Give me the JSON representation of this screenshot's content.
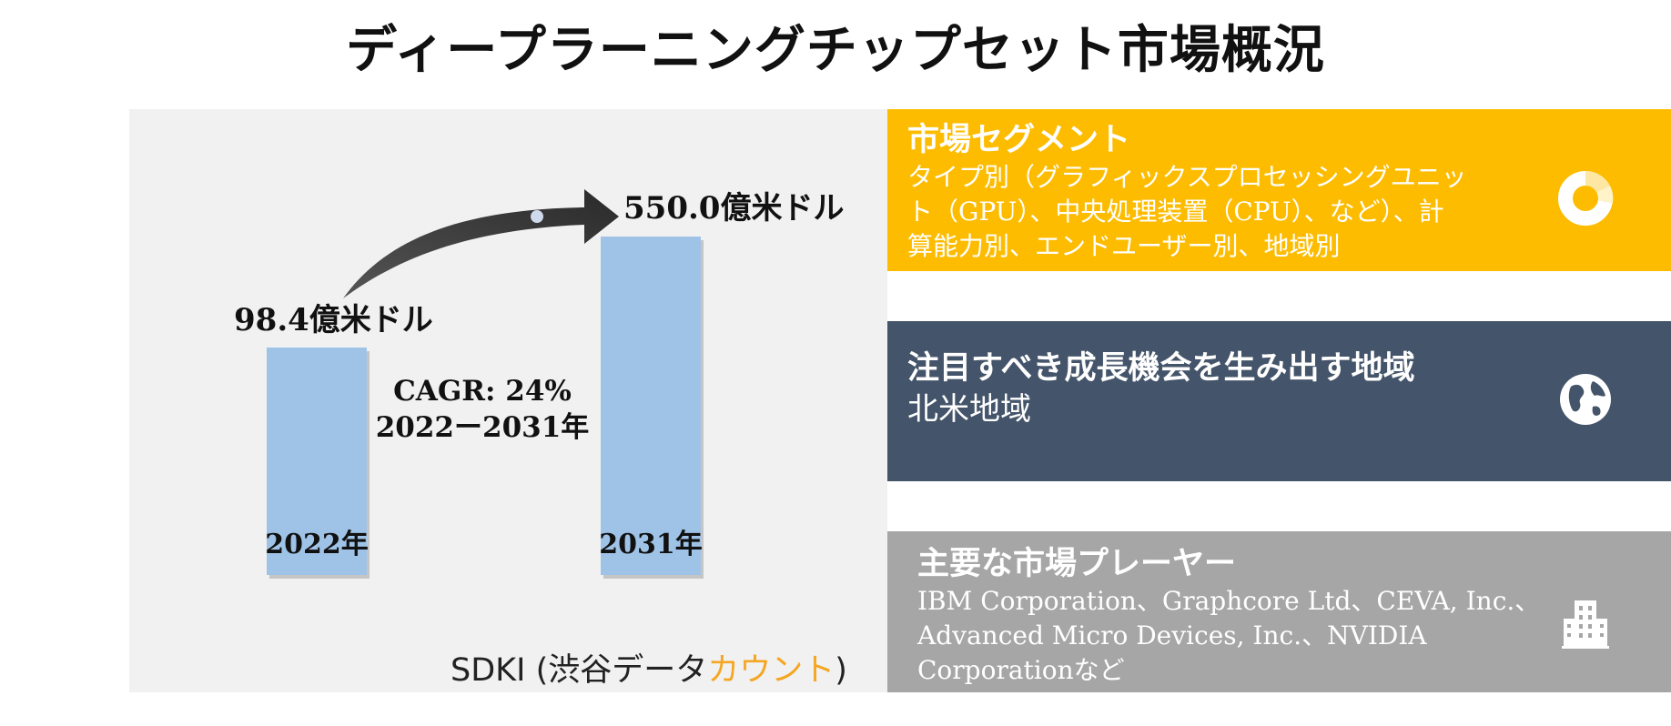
{
  "title": "ディープラーニングチップセット市場概況",
  "chart_data": {
    "type": "bar",
    "categories": [
      "2022年",
      "2031年"
    ],
    "values": [
      98.4,
      550.0
    ],
    "value_labels": [
      "98.4億米ドル",
      "550.0億米ドル"
    ],
    "unit": "億米ドル",
    "cagr_label": "CAGR: 24%",
    "period_label": "2022ー2031年",
    "colors": {
      "bar": "#9fc3e7",
      "arrow": "#3a3a3a",
      "dot": "#cfd9ec"
    }
  },
  "source": {
    "prefix": "SDKI (渋谷データ",
    "accent": "カウント",
    "suffix": ")",
    "accent_color": "#f5a623"
  },
  "cards": [
    {
      "title": "市場セグメント",
      "lines": [
        "タイプ別（グラフィックスプロセッシングユニッ",
        "ト（GPU）、中央処理装置（CPU）、など）、計",
        "算能力別、エンドユーザー別、地域別"
      ],
      "icon": "donut-chart-icon",
      "color": "#fdbc00"
    },
    {
      "title": "注目すべき成長機会を生み出す地域",
      "lines": [
        "北米地域"
      ],
      "icon": "globe-icon",
      "color": "#44546a"
    },
    {
      "title": "主要な市場プレーヤー",
      "lines": [
        "IBM Corporation、Graphcore Ltd、CEVA, Inc.、",
        "Advanced Micro Devices, Inc.、NVIDIA",
        "Corporationなど"
      ],
      "icon": "building-icon",
      "color": "#a6a6a6"
    }
  ]
}
